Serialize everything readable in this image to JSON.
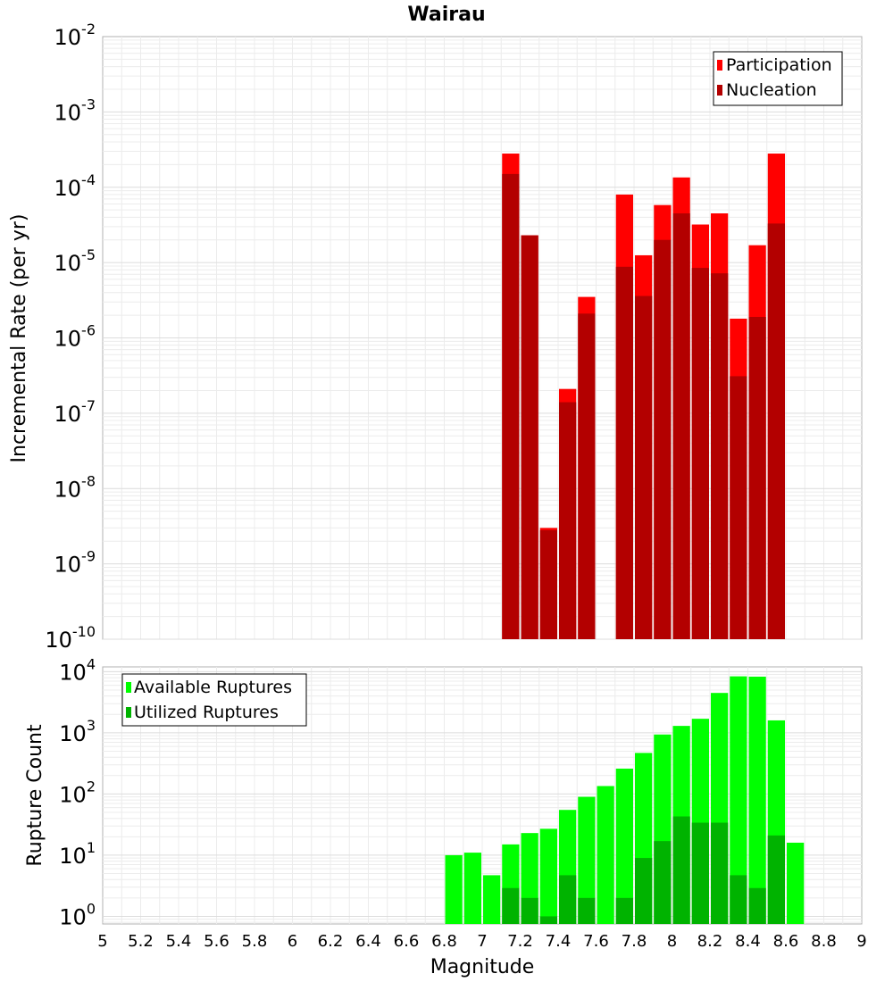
{
  "title": "Wairau",
  "x_axis": {
    "label": "Magnitude",
    "range": [
      5,
      9
    ],
    "ticks": [
      "5",
      "5.2",
      "5.4",
      "5.6",
      "5.8",
      "6",
      "6.2",
      "6.4",
      "6.6",
      "6.8",
      "7",
      "7.2",
      "7.4",
      "7.6",
      "7.8",
      "8",
      "8.2",
      "8.4",
      "8.6",
      "8.8",
      "9"
    ]
  },
  "chart_data": [
    {
      "type": "bar",
      "panel": "top",
      "ylabel": "Incremental Rate (per yr)",
      "yscale": "log",
      "ylim": [
        1e-10,
        0.01
      ],
      "y_ticks": [
        {
          "base": "10",
          "exp": "-10"
        },
        {
          "base": "10",
          "exp": "-9"
        },
        {
          "base": "10",
          "exp": "-8"
        },
        {
          "base": "10",
          "exp": "-7"
        },
        {
          "base": "10",
          "exp": "-6"
        },
        {
          "base": "10",
          "exp": "-5"
        },
        {
          "base": "10",
          "exp": "-4"
        },
        {
          "base": "10",
          "exp": "-3"
        },
        {
          "base": "10",
          "exp": "-2"
        }
      ],
      "legend_position": "top-right",
      "grid": true,
      "x": [
        7.15,
        7.25,
        7.35,
        7.45,
        7.55,
        7.75,
        7.85,
        7.95,
        8.05,
        8.15,
        8.25,
        8.35,
        8.45,
        8.55
      ],
      "series": [
        {
          "name": "Participation",
          "color": "#ff0000",
          "values": [
            0.00028,
            2.3e-05,
            3e-09,
            2.1e-07,
            3.5e-06,
            8e-05,
            1.25e-05,
            5.8e-05,
            0.000135,
            3.2e-05,
            4.5e-05,
            1.8e-06,
            1.7e-05,
            0.00028
          ]
        },
        {
          "name": "Nucleation",
          "color": "#b30000",
          "values": [
            0.00015,
            2.3e-05,
            2.8e-09,
            1.4e-07,
            2.1e-06,
            8.8e-06,
            3.6e-06,
            2e-05,
            4.5e-05,
            8.5e-06,
            7.2e-06,
            3.1e-07,
            1.9e-06,
            3.3e-05
          ]
        }
      ]
    },
    {
      "type": "bar",
      "panel": "bottom",
      "ylabel": "Rupture Count",
      "yscale": "log",
      "ylim": [
        0.75,
        12000
      ],
      "y_ticks": [
        {
          "base": "10",
          "exp": "0"
        },
        {
          "base": "10",
          "exp": "1"
        },
        {
          "base": "10",
          "exp": "2"
        },
        {
          "base": "10",
          "exp": "3"
        },
        {
          "base": "10",
          "exp": "4"
        }
      ],
      "legend_position": "top-left",
      "grid": true,
      "x": [
        6.85,
        6.95,
        7.05,
        7.15,
        7.25,
        7.35,
        7.45,
        7.55,
        7.65,
        7.75,
        7.85,
        7.95,
        8.05,
        8.15,
        8.25,
        8.35,
        8.45,
        8.55,
        8.65
      ],
      "series": [
        {
          "name": "Available Ruptures",
          "color": "#00ff00",
          "values": [
            10,
            11,
            4.7,
            15,
            23,
            27,
            55,
            90,
            135,
            260,
            470,
            940,
            1300,
            1700,
            4500,
            8400,
            8300,
            1600,
            16
          ]
        },
        {
          "name": "Utilized Ruptures",
          "color": "#00b300",
          "values": [
            0,
            0,
            0,
            2.9,
            2,
            1,
            4.7,
            2,
            0,
            2,
            9,
            17,
            43,
            34,
            34,
            4.7,
            2.9,
            21,
            0
          ]
        }
      ]
    }
  ]
}
